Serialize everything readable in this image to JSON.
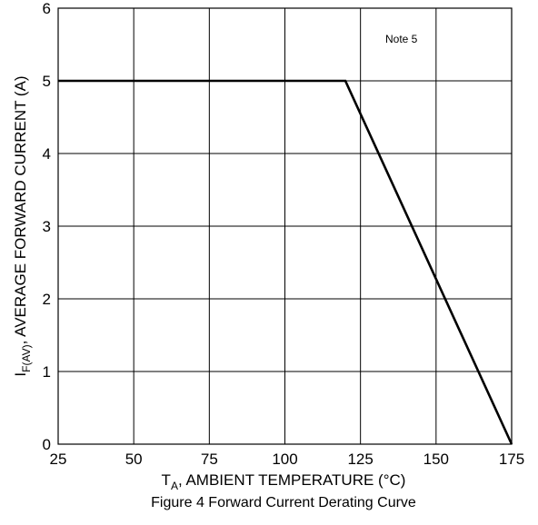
{
  "chart_data": {
    "type": "line",
    "x_ticks": [
      25,
      50,
      75,
      100,
      125,
      150,
      175
    ],
    "y_ticks": [
      0,
      1,
      2,
      3,
      4,
      5,
      6
    ],
    "xlim": [
      25,
      175
    ],
    "ylim": [
      0,
      6
    ],
    "grid": true,
    "series": [
      {
        "x": [
          25,
          120,
          175
        ],
        "y": [
          5,
          5,
          0
        ]
      }
    ],
    "xlabel": {
      "main": "T",
      "sub": "A",
      "rest": ", AMBIENT TEMPERATURE (°C)"
    },
    "ylabel": {
      "main": "I",
      "sub": "F(AV)",
      "rest": ", AVERAGE FORWARD CURRENT (A)"
    },
    "annotation": "Note 5",
    "caption": "Figure 4 Forward Current Derating Curve",
    "colors": {
      "line": "#000000",
      "grid": "#000000",
      "background": "#ffffff"
    }
  }
}
